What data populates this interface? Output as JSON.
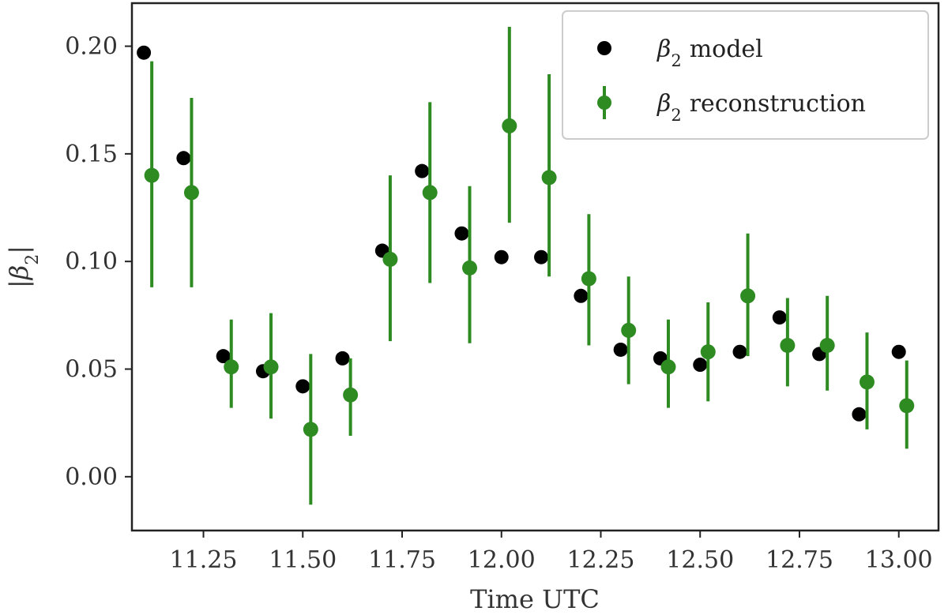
{
  "chart_data": {
    "type": "scatter",
    "xlabel": "Time UTC",
    "ylabel": "|β2|",
    "xlim": [
      11.07,
      13.1
    ],
    "ylim": [
      -0.025,
      0.22
    ],
    "x_ticks": [
      11.25,
      11.5,
      11.75,
      12.0,
      12.25,
      12.5,
      12.75,
      13.0
    ],
    "x_tick_labels": [
      "11.25",
      "11.50",
      "11.75",
      "12.00",
      "12.25",
      "12.50",
      "12.75",
      "13.00"
    ],
    "y_ticks": [
      0.0,
      0.05,
      0.1,
      0.15,
      0.2
    ],
    "y_tick_labels": [
      "0.00",
      "0.05",
      "0.10",
      "0.15",
      "0.20"
    ],
    "grid": false,
    "legend_position": "top-right",
    "series": [
      {
        "name": "β2 model",
        "legend_label": "model",
        "color": "#000000",
        "points": [
          {
            "x": 11.1,
            "y": 0.197
          },
          {
            "x": 11.2,
            "y": 0.148
          },
          {
            "x": 11.3,
            "y": 0.056
          },
          {
            "x": 11.4,
            "y": 0.049
          },
          {
            "x": 11.5,
            "y": 0.042
          },
          {
            "x": 11.6,
            "y": 0.055
          },
          {
            "x": 11.7,
            "y": 0.105
          },
          {
            "x": 11.8,
            "y": 0.142
          },
          {
            "x": 11.9,
            "y": 0.113
          },
          {
            "x": 12.0,
            "y": 0.102
          },
          {
            "x": 12.1,
            "y": 0.102
          },
          {
            "x": 12.2,
            "y": 0.084
          },
          {
            "x": 12.3,
            "y": 0.059
          },
          {
            "x": 12.4,
            "y": 0.055
          },
          {
            "x": 12.5,
            "y": 0.052
          },
          {
            "x": 12.6,
            "y": 0.058
          },
          {
            "x": 12.7,
            "y": 0.074
          },
          {
            "x": 12.8,
            "y": 0.057
          },
          {
            "x": 12.9,
            "y": 0.029
          },
          {
            "x": 13.0,
            "y": 0.058
          }
        ]
      },
      {
        "name": "β2 reconstruction",
        "legend_label": "reconstruction",
        "color": "#2e8b22",
        "points": [
          {
            "x": 11.12,
            "y": 0.14,
            "ylo": 0.088,
            "yhi": 0.193
          },
          {
            "x": 11.22,
            "y": 0.132,
            "ylo": 0.088,
            "yhi": 0.176
          },
          {
            "x": 11.32,
            "y": 0.051,
            "ylo": 0.032,
            "yhi": 0.073
          },
          {
            "x": 11.42,
            "y": 0.051,
            "ylo": 0.027,
            "yhi": 0.076
          },
          {
            "x": 11.52,
            "y": 0.022,
            "ylo": -0.013,
            "yhi": 0.057
          },
          {
            "x": 11.62,
            "y": 0.038,
            "ylo": 0.019,
            "yhi": 0.055
          },
          {
            "x": 11.72,
            "y": 0.101,
            "ylo": 0.063,
            "yhi": 0.14
          },
          {
            "x": 11.82,
            "y": 0.132,
            "ylo": 0.09,
            "yhi": 0.174
          },
          {
            "x": 11.92,
            "y": 0.097,
            "ylo": 0.062,
            "yhi": 0.135
          },
          {
            "x": 12.02,
            "y": 0.163,
            "ylo": 0.118,
            "yhi": 0.209
          },
          {
            "x": 12.12,
            "y": 0.139,
            "ylo": 0.093,
            "yhi": 0.187
          },
          {
            "x": 12.22,
            "y": 0.092,
            "ylo": 0.061,
            "yhi": 0.122
          },
          {
            "x": 12.32,
            "y": 0.068,
            "ylo": 0.043,
            "yhi": 0.093
          },
          {
            "x": 12.42,
            "y": 0.051,
            "ylo": 0.032,
            "yhi": 0.073
          },
          {
            "x": 12.52,
            "y": 0.058,
            "ylo": 0.035,
            "yhi": 0.081
          },
          {
            "x": 12.62,
            "y": 0.084,
            "ylo": 0.056,
            "yhi": 0.113
          },
          {
            "x": 12.72,
            "y": 0.061,
            "ylo": 0.042,
            "yhi": 0.083
          },
          {
            "x": 12.82,
            "y": 0.061,
            "ylo": 0.04,
            "yhi": 0.084
          },
          {
            "x": 12.92,
            "y": 0.044,
            "ylo": 0.022,
            "yhi": 0.067
          },
          {
            "x": 13.02,
            "y": 0.033,
            "ylo": 0.013,
            "yhi": 0.054
          }
        ]
      }
    ]
  }
}
